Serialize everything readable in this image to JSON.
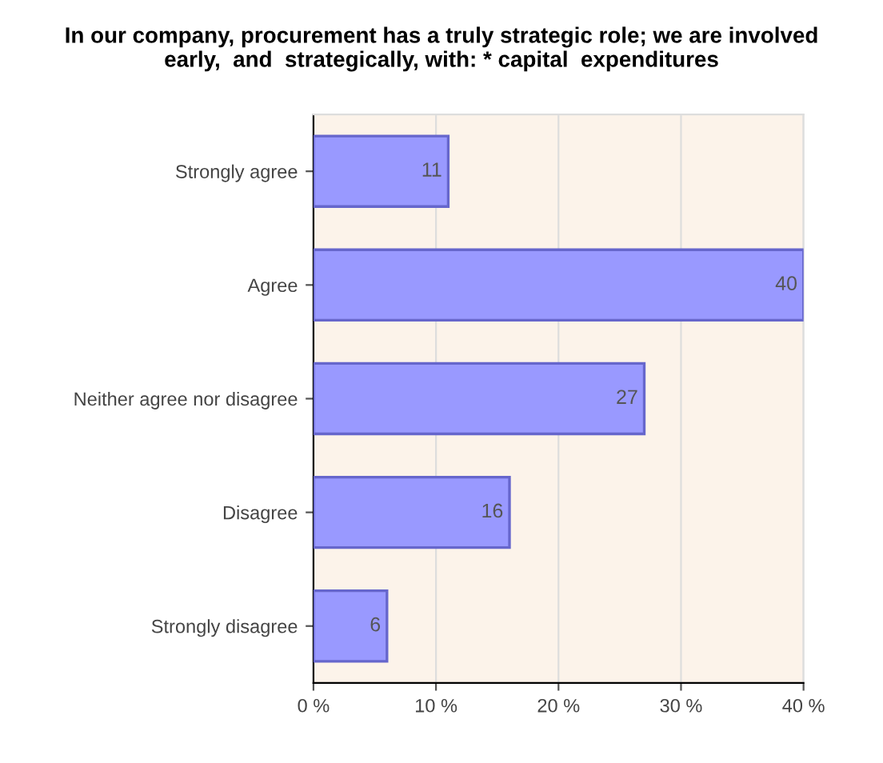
{
  "chart_data": {
    "type": "bar",
    "orientation": "horizontal",
    "title": "In our company, procurement has a truly strategic role; we are involved\nearly,  and  strategically, with: * capital  expenditures",
    "categories": [
      "Strongly agree",
      "Agree",
      "Neither agree nor disagree",
      "Disagree",
      "Strongly disagree"
    ],
    "values": [
      11,
      40,
      27,
      16,
      6
    ],
    "color": "#9999ff",
    "xlim": [
      0,
      40
    ],
    "xticks": [
      {
        "value": 0,
        "label": "0 %"
      },
      {
        "value": 10,
        "label": "10 %"
      },
      {
        "value": 20,
        "label": "20 %"
      },
      {
        "value": 30,
        "label": "30 %"
      },
      {
        "value": 40,
        "label": "40 %"
      }
    ],
    "grid": "x",
    "data_labels": true
  }
}
